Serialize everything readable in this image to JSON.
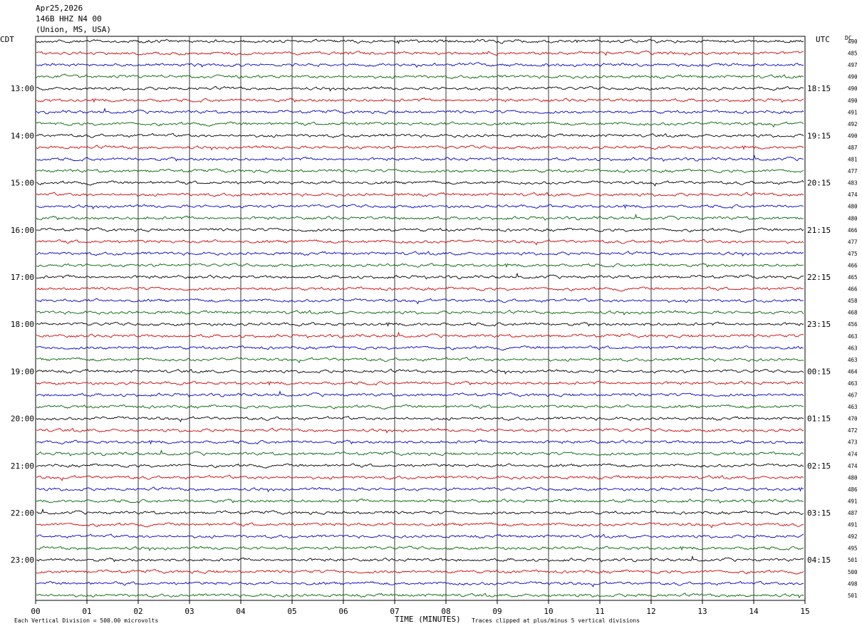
{
  "header": {
    "date": "Apr25,2026",
    "station": "146B HHZ N4 00",
    "location": "(Union, MS, USA)"
  },
  "left_tz": "CDT",
  "right_tz": "UTC",
  "dc_label": "DC",
  "footer": {
    "scale_note": "Each Vertical Division =  500.00 microvolts",
    "clip_note": "Traces clipped at plus/minus 5 vertical divisions"
  },
  "colors": {
    "cycle": [
      "#000000",
      "#d40000",
      "#0000c8",
      "#006400"
    ],
    "grid": "#000000"
  },
  "chart_data": {
    "type": "line",
    "title": "",
    "xlabel": "TIME (MINUTES)",
    "xticks": [
      "00",
      "01",
      "02",
      "03",
      "04",
      "05",
      "06",
      "07",
      "08",
      "09",
      "10",
      "11",
      "12",
      "13",
      "14",
      "15"
    ],
    "xlim": [
      0,
      15
    ],
    "rows_per_hour": 4,
    "cdt_hour_labels": [
      "13:00",
      "14:00",
      "15:00",
      "16:00",
      "17:00",
      "18:00",
      "19:00",
      "20:00",
      "21:00",
      "22:00",
      "23:00"
    ],
    "utc_hour_labels": [
      "18:15",
      "19:15",
      "20:15",
      "21:15",
      "22:15",
      "23:15",
      "00:15",
      "01:15",
      "02:15",
      "03:15",
      "04:15"
    ],
    "dc_offsets": [
      490,
      485,
      497,
      490,
      490,
      490,
      491,
      492,
      490,
      487,
      481,
      477,
      483,
      474,
      480,
      480,
      466,
      477,
      475,
      466,
      465,
      466,
      458,
      468,
      456,
      463,
      463,
      463,
      464,
      463,
      467,
      463,
      470,
      472,
      473,
      474,
      474,
      480,
      486,
      491,
      487,
      491,
      492,
      495,
      501,
      500,
      498,
      501
    ]
  }
}
